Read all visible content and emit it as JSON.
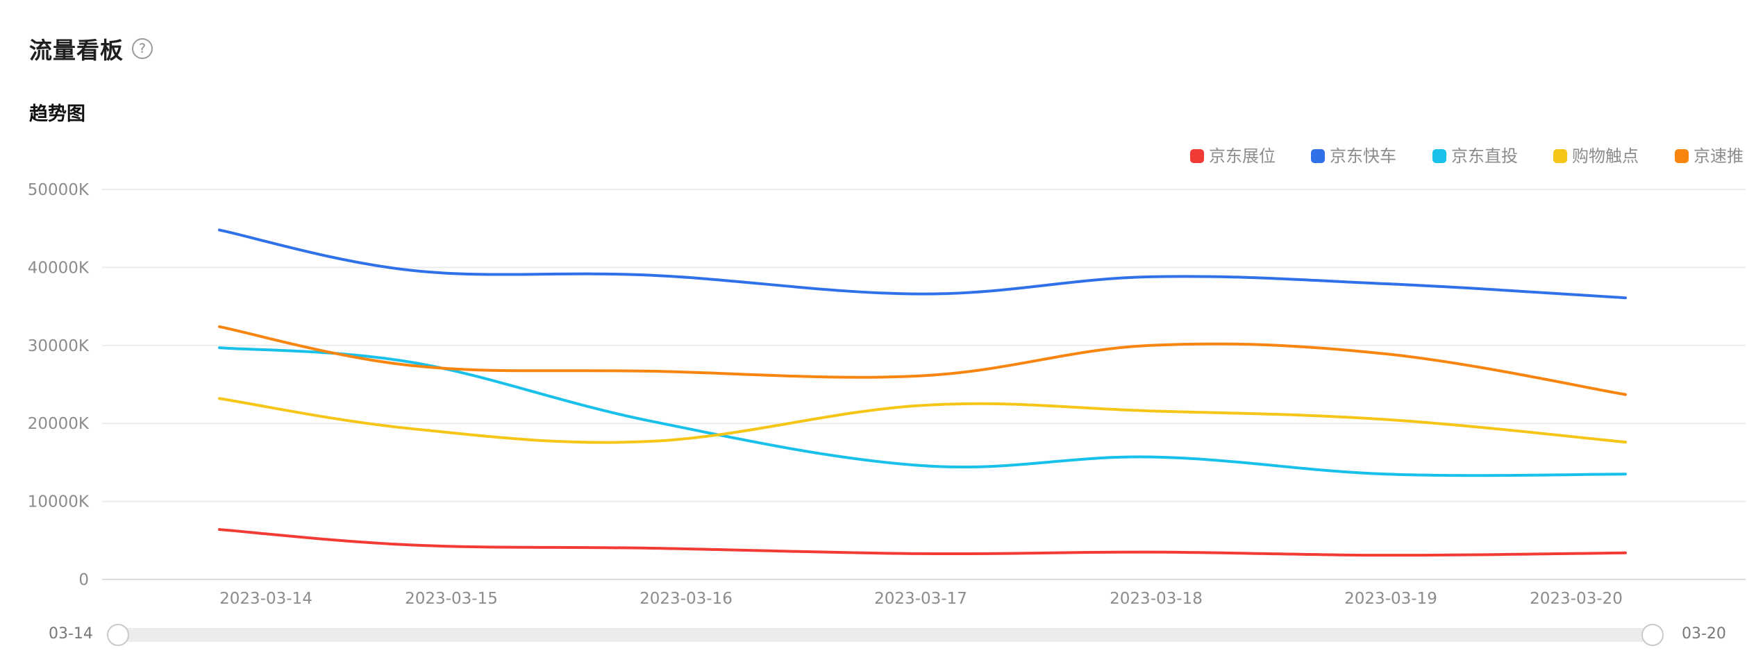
{
  "header": {
    "title": "流量看板",
    "help_icon": "?",
    "subtitle": "趋势图"
  },
  "slider": {
    "start_label": "03-14",
    "end_label": "03-20",
    "range": [
      0,
      1
    ]
  },
  "chart_data": {
    "type": "line",
    "title": "",
    "xlabel": "",
    "ylabel": "",
    "ylim": [
      0,
      50000
    ],
    "grid": true,
    "legend": "top-right",
    "y_ticks": [
      0,
      10000,
      20000,
      30000,
      40000,
      50000
    ],
    "y_tick_labels": [
      "0",
      "10000K",
      "20000K",
      "30000K",
      "40000K",
      "50000K"
    ],
    "categories": [
      "2023-03-14",
      "2023-03-15",
      "2023-03-16",
      "2023-03-17",
      "2023-03-18",
      "2023-03-19",
      "2023-03-20"
    ],
    "series": [
      {
        "name": "京东展位",
        "color": "#f23b35",
        "values": [
          6400,
          4400,
          4000,
          3300,
          3500,
          3100,
          3400
        ]
      },
      {
        "name": "京东快车",
        "color": "#2f71e8",
        "values": [
          44800,
          39600,
          39000,
          36600,
          38800,
          37900,
          36100
        ]
      },
      {
        "name": "京东直投",
        "color": "#19c1ea",
        "values": [
          29700,
          27800,
          20300,
          14600,
          15700,
          13500,
          13500
        ]
      },
      {
        "name": "购物触点",
        "color": "#f5c518",
        "values": [
          23200,
          19300,
          17700,
          22300,
          21600,
          20500,
          17600
        ]
      },
      {
        "name": "京速推",
        "color": "#f7850f",
        "values": [
          32400,
          27400,
          26700,
          26100,
          30000,
          28900,
          23700
        ]
      }
    ]
  }
}
